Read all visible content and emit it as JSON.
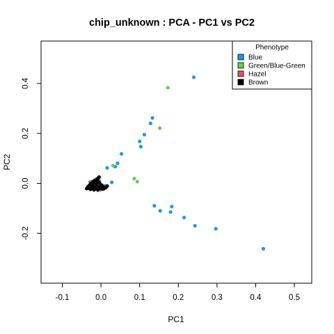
{
  "chart_data": {
    "type": "scatter",
    "title": "chip_unknown : PCA - PC1 vs PC2",
    "xlabel": "PC1",
    "ylabel": "PC2",
    "xlim": [
      -0.155,
      0.545
    ],
    "ylim": [
      -0.4,
      0.57
    ],
    "x_ticks": [
      -0.1,
      0.0,
      0.1,
      0.2,
      0.3,
      0.4,
      0.5
    ],
    "x_tick_labels": [
      "-0.1",
      "0.0",
      "0.1",
      "0.2",
      "0.3",
      "0.4",
      "0.5"
    ],
    "y_ticks": [
      -0.2,
      0.0,
      0.2,
      0.4
    ],
    "y_tick_labels": [
      "-0.2",
      "0.0",
      "0.2",
      "0.4"
    ],
    "grid": false,
    "legend": {
      "title": "Phenotype",
      "placement": "top-right",
      "entries": [
        "Blue",
        "Green/Blue-Green",
        "Hazel",
        "Brown"
      ]
    },
    "series": [
      {
        "name": "Blue",
        "color": "#2297e6",
        "points": [
          [
            0.24,
            0.425
          ],
          [
            0.133,
            0.262
          ],
          [
            0.128,
            0.24
          ],
          [
            0.112,
            0.195
          ],
          [
            0.1,
            0.168
          ],
          [
            0.103,
            0.147
          ],
          [
            0.053,
            0.118
          ],
          [
            0.043,
            0.08
          ],
          [
            0.037,
            0.067
          ],
          [
            0.016,
            0.062
          ],
          [
            0.028,
            0.004
          ],
          [
            0.138,
            -0.09
          ],
          [
            0.153,
            -0.11
          ],
          [
            0.18,
            -0.115
          ],
          [
            0.183,
            -0.093
          ],
          [
            0.215,
            -0.137
          ],
          [
            0.243,
            -0.17
          ],
          [
            0.297,
            -0.182
          ],
          [
            0.42,
            -0.262
          ],
          [
            -0.005,
            0.012
          ],
          [
            -0.012,
            -0.006
          ],
          [
            -0.022,
            -0.018
          ],
          [
            0.01,
            -0.01
          ],
          [
            -0.028,
            0.005
          ],
          [
            -0.015,
            0.008
          ],
          [
            0.002,
            -0.022
          ],
          [
            -0.008,
            -0.028
          ]
        ]
      },
      {
        "name": "Green/Blue-Green",
        "color": "#61d04f",
        "points": [
          [
            0.173,
            0.383
          ],
          [
            0.152,
            0.221
          ],
          [
            0.031,
            0.071
          ],
          [
            0.086,
            0.019
          ],
          [
            0.094,
            0.007
          ],
          [
            -0.01,
            -0.005
          ],
          [
            -0.004,
            0.002
          ],
          [
            -0.018,
            -0.012
          ],
          [
            0.0,
            -0.014
          ],
          [
            -0.02,
            0.004
          ]
        ]
      },
      {
        "name": "Hazel",
        "color": "#df536b",
        "points": [
          [
            -0.022,
            -0.01
          ],
          [
            -0.013,
            -0.02
          ],
          [
            -0.006,
            -0.003
          ],
          [
            0.005,
            -0.018
          ],
          [
            -0.025,
            0.006
          ],
          [
            -0.017,
            0.012
          ],
          [
            -0.002,
            -0.026
          ],
          [
            -0.03,
            -0.016
          ]
        ]
      },
      {
        "name": "Brown",
        "color": "#000000",
        "points": [
          [
            -0.005,
            0.025
          ],
          [
            -0.01,
            0.018
          ],
          [
            -0.016,
            0.012
          ],
          [
            -0.021,
            0.006
          ],
          [
            -0.026,
            -0.001
          ],
          [
            -0.03,
            -0.008
          ],
          [
            -0.034,
            -0.014
          ],
          [
            -0.037,
            -0.021
          ],
          [
            -0.027,
            -0.024
          ],
          [
            -0.018,
            -0.026
          ],
          [
            -0.008,
            -0.025
          ],
          [
            0.004,
            -0.023
          ],
          [
            0.012,
            -0.017
          ],
          [
            0.016,
            -0.011
          ],
          [
            -0.004,
            0.003
          ],
          [
            -0.011,
            -0.005
          ],
          [
            -0.016,
            -0.016
          ],
          [
            -0.006,
            -0.014
          ],
          [
            0.002,
            -0.007
          ],
          [
            -0.021,
            -0.011
          ],
          [
            -0.013,
            0.0
          ],
          [
            -0.003,
            -0.019
          ],
          [
            -0.025,
            -0.018
          ],
          [
            0.008,
            -0.021
          ],
          [
            -0.009,
            0.009
          ],
          [
            -0.019,
            0.001
          ],
          [
            -0.031,
            -0.02
          ],
          [
            -0.014,
            -0.022
          ],
          [
            -0.001,
            -0.011
          ],
          [
            0.006,
            -0.014
          ]
        ]
      }
    ]
  }
}
